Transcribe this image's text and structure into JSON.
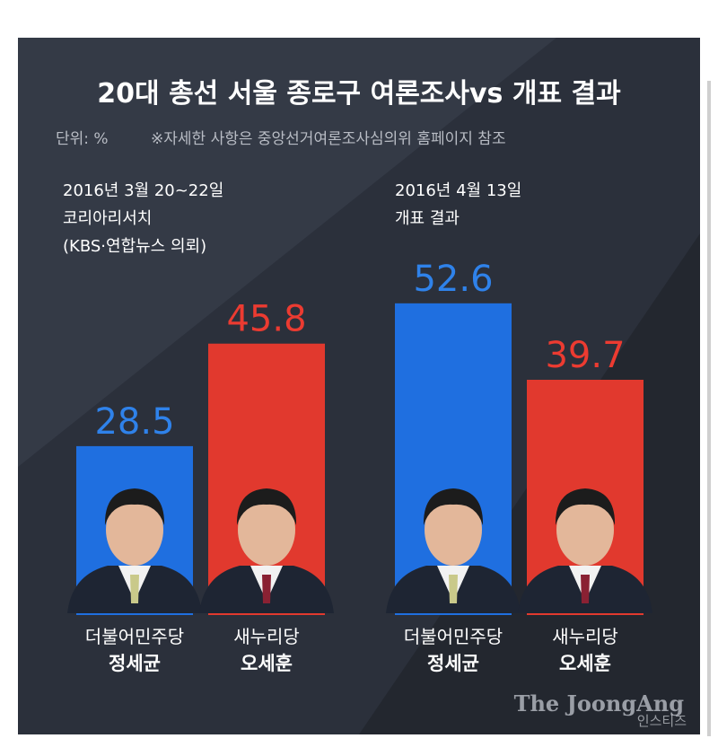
{
  "chart_data": {
    "type": "bar",
    "title": "20대 총선 서울 종로구 여론조사vs 개표 결과",
    "unit": "단위: %",
    "note": "※자세한 사항은 중앙선거여론조사심의위 홈페이지 참조",
    "groups": [
      {
        "lines": [
          "2016년 3월 20~22일",
          "코리아리서치",
          "(KBS·연합뉴스 의뢰)"
        ]
      },
      {
        "lines": [
          "2016년 4월 13일",
          "개표 결과"
        ]
      }
    ],
    "categories": [
      "더불어민주당",
      "새누리당",
      "더불어민주당",
      "새누리당"
    ],
    "candidates": [
      "정세균",
      "오세훈",
      "정세균",
      "오세훈"
    ],
    "values": [
      28.5,
      45.8,
      52.6,
      39.7
    ],
    "colors": [
      "#1f6fe0",
      "#e1392e",
      "#1f6fe0",
      "#e1392e"
    ],
    "label_colors": [
      "#2f82ea",
      "#ec3b31",
      "#2f82ea",
      "#ec3b31"
    ],
    "ylim": [
      0,
      60
    ],
    "source": "The JoongAng",
    "watermark": "인스티즈"
  }
}
